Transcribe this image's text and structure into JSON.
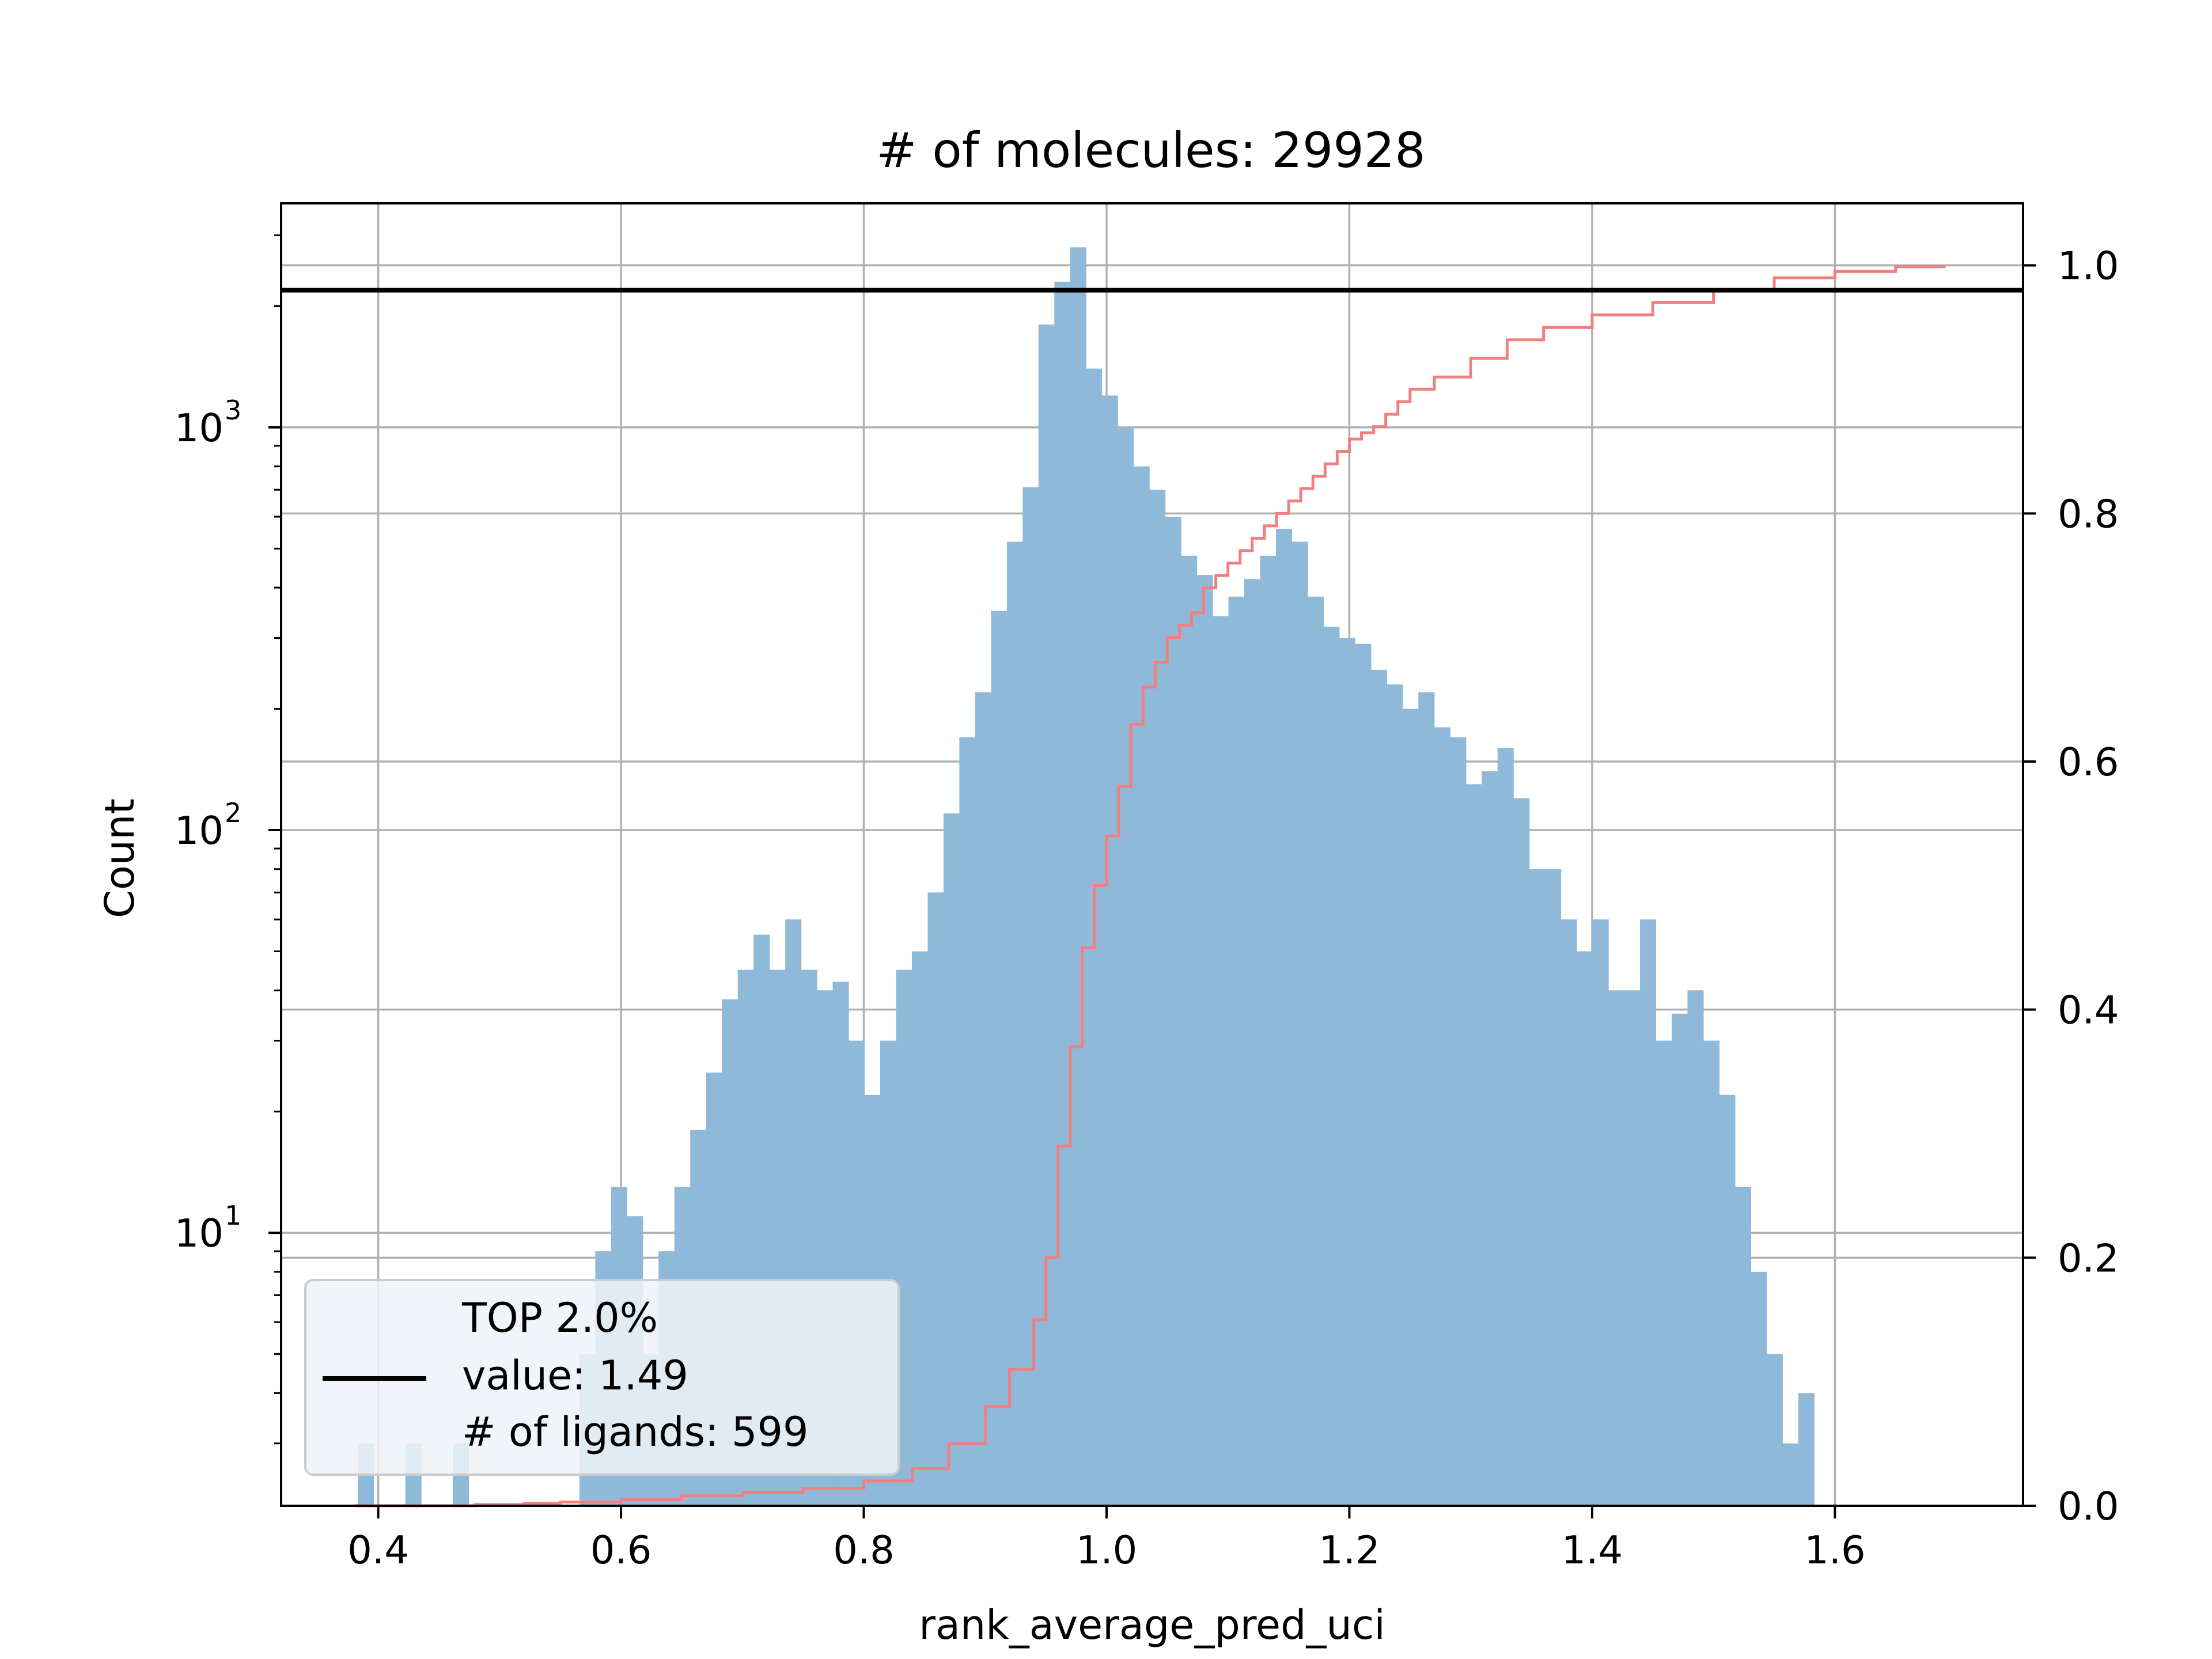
{
  "chart_data": {
    "type": "histogram",
    "title": "# of molecules: 29928",
    "xlabel": "rank_average_pred_uci",
    "ylabel": "Count",
    "ylabel_right": "",
    "x_scale": "linear",
    "y_scale": "log",
    "xlim": [
      0.32,
      1.755
    ],
    "ylim": [
      2.1,
      3600
    ],
    "y2lim": [
      0.0,
      1.05
    ],
    "grid": true,
    "x_ticks": [
      0.4,
      0.6,
      0.8,
      1.0,
      1.2,
      1.4,
      1.6
    ],
    "x_tick_labels": [
      "0.4",
      "0.6",
      "0.8",
      "1.0",
      "1.2",
      "1.4",
      "1.6"
    ],
    "y_ticks": [
      10,
      100,
      1000
    ],
    "y_tick_labels": [
      {
        "base": "10",
        "exp": "1"
      },
      {
        "base": "10",
        "exp": "2"
      },
      {
        "base": "10",
        "exp": "3"
      }
    ],
    "y2_ticks": [
      0.0,
      0.2,
      0.4,
      0.6,
      0.8,
      1.0
    ],
    "y2_tick_labels": [
      "0.0",
      "0.2",
      "0.4",
      "0.6",
      "0.8",
      "1.0"
    ],
    "histogram": {
      "color": "#8fb9d9",
      "bin_start": 0.3832,
      "bin_width": 0.01304,
      "counts": [
        3,
        0,
        0,
        3,
        0,
        0,
        3,
        0,
        0,
        0,
        0,
        0,
        0,
        0,
        5,
        9,
        13,
        11,
        5,
        9,
        13,
        18,
        25,
        38,
        45,
        55,
        45,
        60,
        45,
        40,
        42,
        30,
        22,
        30,
        45,
        50,
        70,
        110,
        170,
        220,
        350,
        520,
        710,
        1800,
        2300,
        2800,
        1400,
        1200,
        1000,
        800,
        700,
        600,
        480,
        430,
        340,
        380,
        420,
        480,
        560,
        520,
        380,
        320,
        300,
        290,
        250,
        230,
        200,
        220,
        180,
        170,
        130,
        140,
        160,
        120,
        80,
        80,
        60,
        50,
        60,
        40,
        40,
        60,
        30,
        35,
        40,
        30,
        22,
        13,
        8,
        5,
        3,
        4
      ],
      "alpha": 1.0
    },
    "cumulative": {
      "color": "#f08080",
      "x": [
        0.38,
        0.48,
        0.52,
        0.55,
        0.6,
        0.65,
        0.7,
        0.75,
        0.8,
        0.84,
        0.87,
        0.9,
        0.92,
        0.94,
        0.95,
        0.96,
        0.97,
        0.98,
        0.99,
        1.0,
        1.01,
        1.02,
        1.03,
        1.04,
        1.05,
        1.06,
        1.07,
        1.08,
        1.09,
        1.1,
        1.11,
        1.12,
        1.13,
        1.14,
        1.15,
        1.16,
        1.17,
        1.18,
        1.19,
        1.2,
        1.21,
        1.22,
        1.23,
        1.24,
        1.25,
        1.27,
        1.3,
        1.33,
        1.36,
        1.4,
        1.45,
        1.5,
        1.55,
        1.6,
        1.65,
        1.69
      ],
      "y": [
        0.0,
        0.001,
        0.002,
        0.003,
        0.005,
        0.008,
        0.011,
        0.014,
        0.02,
        0.03,
        0.05,
        0.08,
        0.11,
        0.15,
        0.2,
        0.29,
        0.37,
        0.45,
        0.5,
        0.54,
        0.58,
        0.63,
        0.66,
        0.68,
        0.7,
        0.71,
        0.72,
        0.74,
        0.75,
        0.76,
        0.77,
        0.78,
        0.79,
        0.8,
        0.81,
        0.82,
        0.83,
        0.84,
        0.85,
        0.86,
        0.865,
        0.87,
        0.88,
        0.89,
        0.9,
        0.91,
        0.925,
        0.94,
        0.95,
        0.96,
        0.97,
        0.98,
        0.99,
        0.995,
        0.999,
        1.0
      ]
    },
    "threshold": {
      "color": "#000000",
      "y2_value": 0.98,
      "legend_lines": [
        "TOP 2.0%",
        "value: 1.49",
        "# of ligands: 599"
      ],
      "legend_location": "lower-left"
    }
  }
}
